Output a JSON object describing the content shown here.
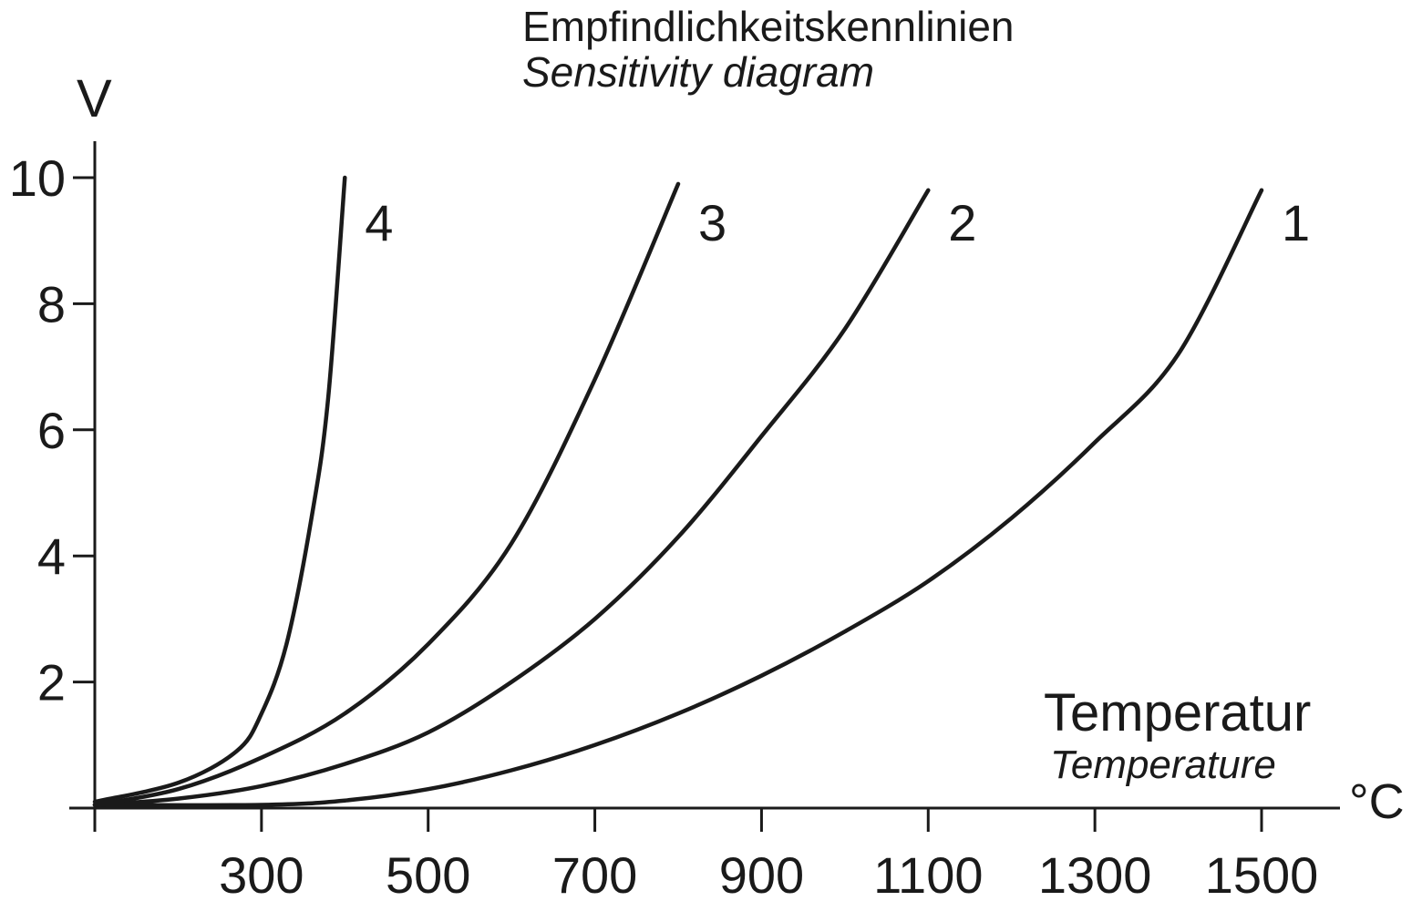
{
  "chart_data": {
    "type": "line",
    "title": "Empfindlichkeitskennlinien",
    "subtitle": "Sensitivity diagram",
    "ylabel": "V",
    "xlabel": "Temperatur",
    "xlabel_en": "Temperature",
    "xunit": "°C",
    "xlim": [
      100,
      1600
    ],
    "ylim": [
      0,
      10
    ],
    "x_ticks": [
      100,
      300,
      500,
      700,
      900,
      1100,
      1300,
      1500
    ],
    "x_tick_labels": [
      "",
      "300",
      "500",
      "700",
      "900",
      "1100",
      "1300",
      "1500"
    ],
    "y_ticks": [
      0,
      2,
      4,
      6,
      8,
      10
    ],
    "y_tick_labels": [
      "",
      "2",
      "4",
      "6",
      "8",
      "10"
    ],
    "grid": false,
    "legend": "none",
    "series": [
      {
        "label": "1",
        "x": [
          100,
          300,
          400,
          500,
          600,
          700,
          800,
          900,
          1000,
          1100,
          1200,
          1300,
          1400,
          1500
        ],
        "y": [
          0.05,
          0.05,
          0.12,
          0.3,
          0.6,
          1.0,
          1.5,
          2.1,
          2.8,
          3.6,
          4.6,
          5.8,
          7.2,
          9.8
        ]
      },
      {
        "label": "2",
        "x": [
          100,
          200,
          300,
          400,
          500,
          600,
          700,
          800,
          900,
          1000,
          1100
        ],
        "y": [
          0.05,
          0.15,
          0.35,
          0.7,
          1.2,
          2.0,
          3.0,
          4.3,
          5.9,
          7.6,
          9.8
        ]
      },
      {
        "label": "3",
        "x": [
          100,
          200,
          300,
          400,
          500,
          600,
          700,
          800
        ],
        "y": [
          0.05,
          0.3,
          0.8,
          1.5,
          2.6,
          4.2,
          6.8,
          9.9
        ]
      },
      {
        "label": "4",
        "x": [
          100,
          200,
          270,
          300,
          330,
          360,
          380,
          400
        ],
        "y": [
          0.1,
          0.4,
          0.9,
          1.5,
          2.6,
          4.6,
          6.5,
          10.0
        ]
      }
    ]
  }
}
